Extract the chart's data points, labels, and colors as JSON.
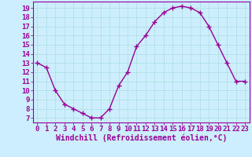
{
  "x": [
    0,
    1,
    2,
    3,
    4,
    5,
    6,
    7,
    8,
    9,
    10,
    11,
    12,
    13,
    14,
    15,
    16,
    17,
    18,
    19,
    20,
    21,
    22,
    23
  ],
  "y": [
    13,
    12.5,
    10,
    8.5,
    8,
    7.5,
    7,
    7,
    8,
    10.5,
    12,
    14.8,
    16,
    17.5,
    18.5,
    19,
    19.2,
    19,
    18.5,
    17,
    15,
    13,
    11,
    11
  ],
  "line_color": "#990099",
  "marker": "+",
  "marker_size": 4,
  "bg_color": "#cceeff",
  "grid_color": "#aadddd",
  "xlabel": "Windchill (Refroidissement éolien,°C)",
  "xlabel_color": "#990099",
  "ytick_labels": [
    "7",
    "8",
    "9",
    "10",
    "11",
    "12",
    "13",
    "14",
    "15",
    "16",
    "17",
    "18",
    "19"
  ],
  "ytick_values": [
    7,
    8,
    9,
    10,
    11,
    12,
    13,
    14,
    15,
    16,
    17,
    18,
    19
  ],
  "xtick_labels": [
    "0",
    "1",
    "2",
    "3",
    "4",
    "5",
    "6",
    "7",
    "8",
    "9",
    "10",
    "11",
    "12",
    "13",
    "14",
    "15",
    "16",
    "17",
    "18",
    "19",
    "20",
    "21",
    "22",
    "23"
  ],
  "xlim": [
    -0.5,
    23.5
  ],
  "ylim": [
    6.5,
    19.7
  ],
  "tick_color": "#990099",
  "tick_label_color": "#990099",
  "spine_color": "#990099",
  "xlabel_fontsize": 7,
  "tick_fontsize": 6.5,
  "linewidth": 1.0
}
